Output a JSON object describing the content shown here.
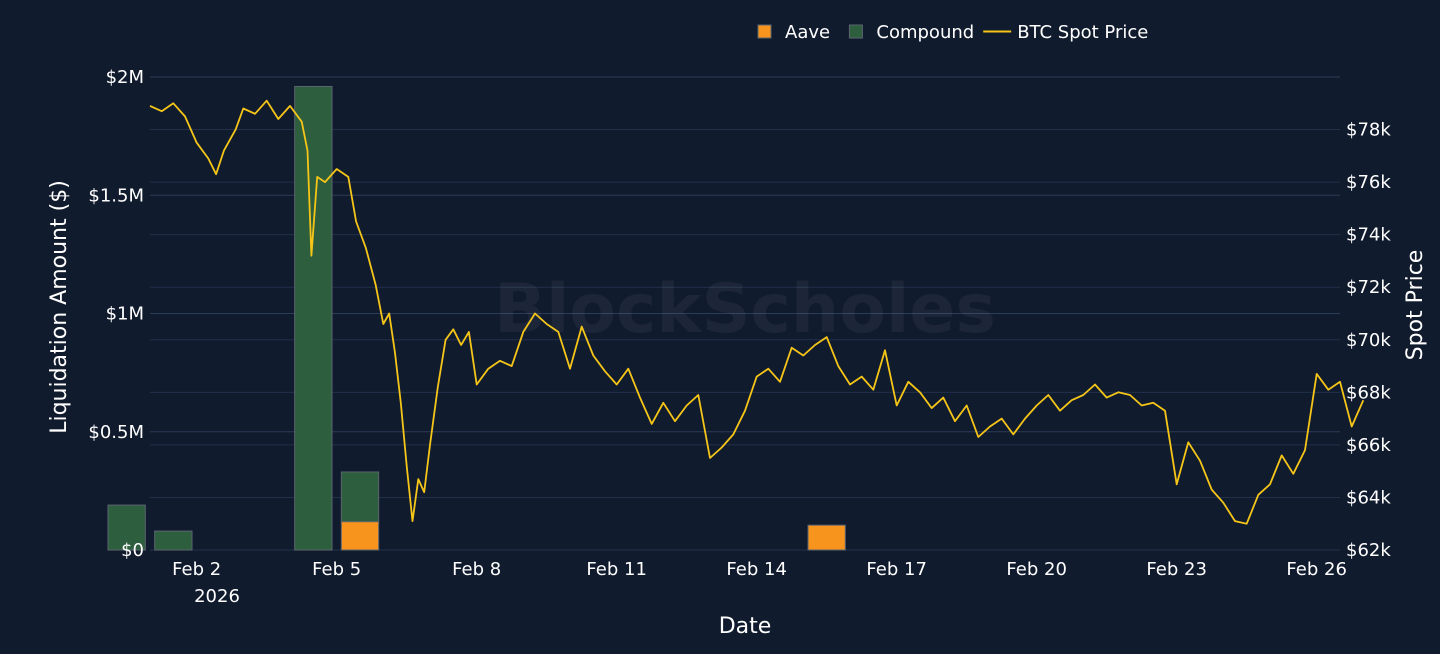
{
  "chart_data": {
    "type": "bar",
    "watermark": "BlockScholes",
    "xlabel": "Date",
    "ylabel": "Liquidation Amount ($)",
    "y2label": "Spot Price",
    "x_ticks": [
      "Feb 2",
      "Feb 5",
      "Feb 8",
      "Feb 11",
      "Feb 14",
      "Feb 17",
      "Feb 20",
      "Feb 23",
      "Feb 26"
    ],
    "x_tick_sublabel": "2026",
    "y_ticks": [
      "$0",
      "$0.5M",
      "$1M",
      "$1.5M",
      "$2M"
    ],
    "y2_ticks": [
      "$62k",
      "$64k",
      "$66k",
      "$68k",
      "$70k",
      "$72k",
      "$74k",
      "$76k",
      "$78k"
    ],
    "ylim": [
      0,
      2000000
    ],
    "y2lim": [
      62000,
      80000
    ],
    "legend_position": "top-center",
    "categories": [
      "Feb 1",
      "Feb 2",
      "Feb 3",
      "Feb 4",
      "Feb 5",
      "Feb 6",
      "Feb 7",
      "Feb 8",
      "Feb 9",
      "Feb 10",
      "Feb 11",
      "Feb 12",
      "Feb 13",
      "Feb 14",
      "Feb 15",
      "Feb 16",
      "Feb 17",
      "Feb 18",
      "Feb 19",
      "Feb 20",
      "Feb 21",
      "Feb 22",
      "Feb 23",
      "Feb 24",
      "Feb 25",
      "Feb 26"
    ],
    "series": [
      {
        "name": "Aave",
        "kind": "bar",
        "color": "#f7941d",
        "values": [
          0,
          0,
          0,
          0,
          0,
          120000,
          0,
          0,
          0,
          0,
          0,
          0,
          0,
          0,
          0,
          105000,
          0,
          0,
          0,
          0,
          0,
          0,
          0,
          0,
          0,
          0
        ]
      },
      {
        "name": "Compound",
        "kind": "bar",
        "color": "#2d5e3d",
        "values": [
          190000,
          80000,
          0,
          0,
          1960000,
          210000,
          0,
          0,
          0,
          0,
          0,
          0,
          0,
          0,
          0,
          0,
          0,
          0,
          0,
          0,
          0,
          0,
          0,
          0,
          0,
          0
        ]
      },
      {
        "name": "BTC Spot Price",
        "kind": "line",
        "color": "#f5c518",
        "axis": "right",
        "points": [
          [
            "Feb 1 00:00",
            78900
          ],
          [
            "Feb 1 06:00",
            78700
          ],
          [
            "Feb 1 12:00",
            79000
          ],
          [
            "Feb 1 18:00",
            78500
          ],
          [
            "Feb 2 00:00",
            77500
          ],
          [
            "Feb 2 06:00",
            76900
          ],
          [
            "Feb 2 10:00",
            76300
          ],
          [
            "Feb 2 14:00",
            77200
          ],
          [
            "Feb 2 20:00",
            78000
          ],
          [
            "Feb 3 00:00",
            78800
          ],
          [
            "Feb 3 06:00",
            78600
          ],
          [
            "Feb 3 12:00",
            79100
          ],
          [
            "Feb 3 18:00",
            78400
          ],
          [
            "Feb 4 00:00",
            78900
          ],
          [
            "Feb 4 06:00",
            78300
          ],
          [
            "Feb 4 09:00",
            77200
          ],
          [
            "Feb 4 11:00",
            73200
          ],
          [
            "Feb 4 14:00",
            76200
          ],
          [
            "Feb 4 18:00",
            76000
          ],
          [
            "Feb 5 00:00",
            76500
          ],
          [
            "Feb 5 06:00",
            76200
          ],
          [
            "Feb 5 10:00",
            74500
          ],
          [
            "Feb 5 15:00",
            73500
          ],
          [
            "Feb 5 20:00",
            72100
          ],
          [
            "Feb 6 00:00",
            70600
          ],
          [
            "Feb 6 03:00",
            71000
          ],
          [
            "Feb 6 06:00",
            69500
          ],
          [
            "Feb 6 09:00",
            67600
          ],
          [
            "Feb 6 12:00",
            65200
          ],
          [
            "Feb 6 15:00",
            63100
          ],
          [
            "Feb 6 18:00",
            64700
          ],
          [
            "Feb 6 21:00",
            64200
          ],
          [
            "Feb 7 00:00",
            66000
          ],
          [
            "Feb 7 04:00",
            68200
          ],
          [
            "Feb 7 08:00",
            70000
          ],
          [
            "Feb 7 12:00",
            70400
          ],
          [
            "Feb 7 16:00",
            69800
          ],
          [
            "Feb 7 20:00",
            70300
          ],
          [
            "Feb 8 00:00",
            68300
          ],
          [
            "Feb 8 06:00",
            68900
          ],
          [
            "Feb 8 12:00",
            69200
          ],
          [
            "Feb 8 18:00",
            69000
          ],
          [
            "Feb 9 00:00",
            70300
          ],
          [
            "Feb 9 06:00",
            71000
          ],
          [
            "Feb 9 12:00",
            70600
          ],
          [
            "Feb 9 18:00",
            70300
          ],
          [
            "Feb 10 00:00",
            68900
          ],
          [
            "Feb 10 06:00",
            70500
          ],
          [
            "Feb 10 12:00",
            69400
          ],
          [
            "Feb 10 18:00",
            68800
          ],
          [
            "Feb 11 00:00",
            68300
          ],
          [
            "Feb 11 06:00",
            68900
          ],
          [
            "Feb 11 12:00",
            67800
          ],
          [
            "Feb 11 18:00",
            66800
          ],
          [
            "Feb 12 00:00",
            67600
          ],
          [
            "Feb 12 06:00",
            66900
          ],
          [
            "Feb 12 12:00",
            67500
          ],
          [
            "Feb 12 18:00",
            67900
          ],
          [
            "Feb 13 00:00",
            65500
          ],
          [
            "Feb 13 06:00",
            65900
          ],
          [
            "Feb 13 12:00",
            66400
          ],
          [
            "Feb 13 18:00",
            67300
          ],
          [
            "Feb 14 00:00",
            68600
          ],
          [
            "Feb 14 06:00",
            68900
          ],
          [
            "Feb 14 12:00",
            68400
          ],
          [
            "Feb 14 18:00",
            69700
          ],
          [
            "Feb 15 00:00",
            69400
          ],
          [
            "Feb 15 06:00",
            69800
          ],
          [
            "Feb 15 12:00",
            70100
          ],
          [
            "Feb 15 18:00",
            69000
          ],
          [
            "Feb 16 00:00",
            68300
          ],
          [
            "Feb 16 06:00",
            68600
          ],
          [
            "Feb 16 12:00",
            68100
          ],
          [
            "Feb 16 18:00",
            69600
          ],
          [
            "Feb 17 00:00",
            67500
          ],
          [
            "Feb 17 06:00",
            68400
          ],
          [
            "Feb 17 12:00",
            68000
          ],
          [
            "Feb 17 18:00",
            67400
          ],
          [
            "Feb 18 00:00",
            67800
          ],
          [
            "Feb 18 06:00",
            66900
          ],
          [
            "Feb 18 12:00",
            67500
          ],
          [
            "Feb 18 18:00",
            66300
          ],
          [
            "Feb 19 00:00",
            66700
          ],
          [
            "Feb 19 06:00",
            67000
          ],
          [
            "Feb 19 12:00",
            66400
          ],
          [
            "Feb 19 18:00",
            67000
          ],
          [
            "Feb 20 00:00",
            67500
          ],
          [
            "Feb 20 06:00",
            67900
          ],
          [
            "Feb 20 12:00",
            67300
          ],
          [
            "Feb 20 18:00",
            67700
          ],
          [
            "Feb 21 00:00",
            67900
          ],
          [
            "Feb 21 06:00",
            68300
          ],
          [
            "Feb 21 12:00",
            67800
          ],
          [
            "Feb 21 18:00",
            68000
          ],
          [
            "Feb 22 00:00",
            67900
          ],
          [
            "Feb 22 06:00",
            67500
          ],
          [
            "Feb 22 12:00",
            67600
          ],
          [
            "Feb 22 18:00",
            67300
          ],
          [
            "Feb 23 00:00",
            64500
          ],
          [
            "Feb 23 06:00",
            66100
          ],
          [
            "Feb 23 12:00",
            65400
          ],
          [
            "Feb 23 18:00",
            64300
          ],
          [
            "Feb 24 00:00",
            63800
          ],
          [
            "Feb 24 06:00",
            63100
          ],
          [
            "Feb 24 12:00",
            63000
          ],
          [
            "Feb 24 18:00",
            64100
          ],
          [
            "Feb 25 00:00",
            64500
          ],
          [
            "Feb 25 06:00",
            65600
          ],
          [
            "Feb 25 12:00",
            64900
          ],
          [
            "Feb 25 18:00",
            65800
          ],
          [
            "Feb 26 00:00",
            68700
          ],
          [
            "Feb 26 06:00",
            68100
          ],
          [
            "Feb 26 12:00",
            68400
          ],
          [
            "Feb 26 18:00",
            66700
          ],
          [
            "Feb 27 00:00",
            67700
          ]
        ]
      }
    ]
  }
}
